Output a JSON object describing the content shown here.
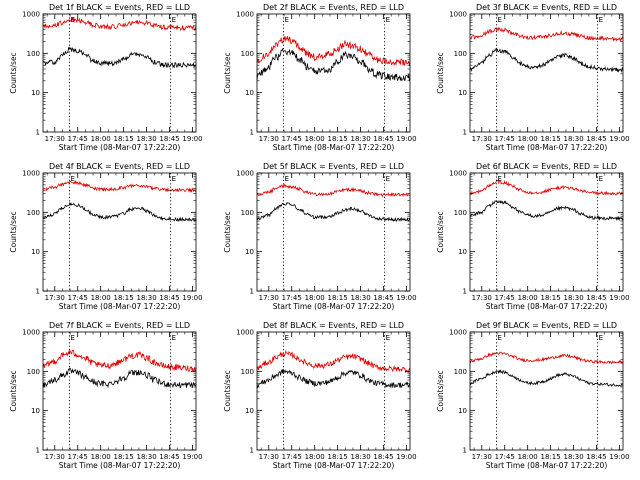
{
  "chart_data": {
    "type": "line",
    "layout": "3x3 grid of panels",
    "colors": {
      "events": "#000000",
      "lld": "#e00000",
      "marker": "#000000",
      "axes": "#000000"
    },
    "common": {
      "ylabel": "Counts/sec",
      "xlabel": "Start Time (08-Mar-07 17:22:20)",
      "yscale": "log",
      "ylim": [
        1,
        1000
      ],
      "yticks": [
        "1",
        "10",
        "100",
        "1000"
      ],
      "xlim_minutes_after_17_00": [
        22.3,
        122.3
      ],
      "xticks": [
        "17:30",
        "17:45",
        "18:00",
        "18:15",
        "18:30",
        "18:45",
        "19:00"
      ],
      "xtick_minutes_after_17_00": [
        30,
        45,
        60,
        75,
        90,
        105,
        120
      ],
      "marker_lines_minutes_after_17_00": [
        39.6,
        105.7
      ],
      "marker_label": "E"
    },
    "panels": [
      {
        "id": "det1f",
        "title": "Det 1f BLACK = Events, RED = LLD",
        "noise": 0.12,
        "series": [
          {
            "key": "events",
            "x": [
              22.3,
              30,
              35,
              40,
              45,
              50,
              55,
              60,
              65,
              70,
              75,
              80,
              85,
              90,
              95,
              100,
              105,
              110,
              115,
              122.3
            ],
            "y": [
              55,
              60,
              90,
              125,
              115,
              90,
              65,
              55,
              55,
              58,
              70,
              90,
              95,
              80,
              60,
              52,
              50,
              50,
              50,
              48
            ]
          },
          {
            "key": "lld",
            "x": [
              22.3,
              30,
              35,
              40,
              45,
              50,
              55,
              60,
              65,
              70,
              75,
              80,
              85,
              90,
              95,
              100,
              105,
              110,
              115,
              122.3
            ],
            "y": [
              490,
              520,
              600,
              710,
              690,
              620,
              530,
              480,
              470,
              480,
              530,
              590,
              620,
              580,
              520,
              470,
              460,
              450,
              450,
              440
            ]
          }
        ]
      },
      {
        "id": "det2f",
        "title": "Det 2f BLACK = Events, RED = LLD",
        "noise": 0.18,
        "series": [
          {
            "key": "events",
            "x": [
              22.3,
              30,
              35,
              40,
              45,
              50,
              55,
              60,
              65,
              70,
              75,
              80,
              85,
              90,
              95,
              100,
              105,
              110,
              115,
              122.3
            ],
            "y": [
              25,
              45,
              80,
              110,
              100,
              70,
              45,
              35,
              35,
              40,
              60,
              90,
              80,
              60,
              40,
              30,
              26,
              25,
              25,
              24
            ]
          },
          {
            "key": "lld",
            "x": [
              22.3,
              30,
              35,
              40,
              45,
              50,
              55,
              60,
              65,
              70,
              75,
              80,
              85,
              90,
              95,
              100,
              105,
              110,
              115,
              122.3
            ],
            "y": [
              60,
              100,
              170,
              230,
              210,
              150,
              100,
              80,
              80,
              95,
              130,
              170,
              160,
              130,
              90,
              70,
              65,
              62,
              60,
              60
            ]
          }
        ]
      },
      {
        "id": "det3f",
        "title": "Det 3f BLACK = Events, RED = LLD",
        "noise": 0.1,
        "series": [
          {
            "key": "events",
            "x": [
              22.3,
              30,
              35,
              40,
              45,
              50,
              55,
              60,
              65,
              70,
              75,
              80,
              85,
              90,
              95,
              100,
              105,
              110,
              115,
              122.3
            ],
            "y": [
              40,
              55,
              90,
              120,
              110,
              80,
              55,
              45,
              45,
              50,
              65,
              85,
              90,
              75,
              55,
              45,
              42,
              40,
              40,
              38
            ]
          },
          {
            "key": "lld",
            "x": [
              22.3,
              30,
              35,
              40,
              45,
              50,
              55,
              60,
              65,
              70,
              75,
              80,
              85,
              90,
              95,
              100,
              105,
              110,
              115,
              122.3
            ],
            "y": [
              250,
              290,
              360,
              410,
              390,
              330,
              270,
              250,
              250,
              260,
              290,
              320,
              330,
              300,
              270,
              250,
              240,
              240,
              235,
              230
            ]
          }
        ]
      },
      {
        "id": "det4f",
        "title": "Det 4f BLACK = Events, RED = LLD",
        "noise": 0.08,
        "series": [
          {
            "key": "events",
            "x": [
              22.3,
              30,
              35,
              40,
              45,
              50,
              55,
              60,
              65,
              70,
              75,
              80,
              85,
              90,
              95,
              100,
              105,
              110,
              115,
              122.3
            ],
            "y": [
              70,
              90,
              130,
              160,
              150,
              120,
              90,
              75,
              75,
              80,
              95,
              120,
              130,
              110,
              85,
              70,
              68,
              66,
              65,
              65
            ]
          },
          {
            "key": "lld",
            "x": [
              22.3,
              30,
              35,
              40,
              45,
              50,
              55,
              60,
              65,
              70,
              75,
              80,
              85,
              90,
              95,
              100,
              105,
              110,
              115,
              122.3
            ],
            "y": [
              380,
              430,
              520,
              580,
              560,
              490,
              420,
              380,
              380,
              390,
              430,
              470,
              480,
              450,
              400,
              380,
              370,
              370,
              370,
              370
            ]
          }
        ]
      },
      {
        "id": "det5f",
        "title": "Det 5f BLACK = Events, RED = LLD",
        "noise": 0.08,
        "series": [
          {
            "key": "events",
            "x": [
              22.3,
              30,
              35,
              40,
              45,
              50,
              55,
              60,
              65,
              70,
              75,
              80,
              85,
              90,
              95,
              100,
              105,
              110,
              115,
              122.3
            ],
            "y": [
              70,
              85,
              130,
              165,
              155,
              120,
              90,
              75,
              75,
              80,
              95,
              115,
              125,
              110,
              85,
              70,
              68,
              66,
              65,
              65
            ]
          },
          {
            "key": "lld",
            "x": [
              22.3,
              30,
              35,
              40,
              45,
              50,
              55,
              60,
              65,
              70,
              75,
              80,
              85,
              90,
              95,
              100,
              105,
              110,
              115,
              122.3
            ],
            "y": [
              280,
              320,
              410,
              470,
              450,
              390,
              320,
              290,
              290,
              300,
              340,
              370,
              380,
              350,
              310,
              290,
              280,
              280,
              280,
              280
            ]
          }
        ]
      },
      {
        "id": "det6f",
        "title": "Det 6f BLACK = Events, RED = LLD",
        "noise": 0.08,
        "series": [
          {
            "key": "events",
            "x": [
              22.3,
              30,
              35,
              40,
              45,
              50,
              55,
              60,
              65,
              70,
              75,
              80,
              85,
              90,
              95,
              100,
              105,
              110,
              115,
              122.3
            ],
            "y": [
              80,
              100,
              150,
              190,
              175,
              140,
              100,
              85,
              80,
              85,
              100,
              125,
              130,
              115,
              90,
              75,
              72,
              70,
              70,
              70
            ]
          },
          {
            "key": "lld",
            "x": [
              22.3,
              30,
              35,
              40,
              45,
              50,
              55,
              60,
              65,
              70,
              75,
              80,
              85,
              90,
              95,
              100,
              105,
              110,
              115,
              122.3
            ],
            "y": [
              300,
              350,
              480,
              600,
              560,
              460,
              370,
              320,
              320,
              330,
              380,
              420,
              430,
              400,
              350,
              320,
              310,
              305,
              300,
              300
            ]
          }
        ]
      },
      {
        "id": "det7f",
        "title": "Det 7f BLACK = Events, RED = LLD",
        "noise": 0.16,
        "series": [
          {
            "key": "events",
            "x": [
              22.3,
              30,
              35,
              40,
              45,
              50,
              55,
              60,
              65,
              70,
              75,
              80,
              85,
              90,
              95,
              100,
              105,
              110,
              115,
              122.3
            ],
            "y": [
              45,
              60,
              80,
              100,
              90,
              70,
              55,
              48,
              48,
              55,
              70,
              90,
              95,
              80,
              60,
              50,
              47,
              45,
              45,
              45
            ]
          },
          {
            "key": "lld",
            "x": [
              22.3,
              30,
              35,
              40,
              45,
              50,
              55,
              60,
              65,
              70,
              75,
              80,
              85,
              90,
              95,
              100,
              105,
              110,
              115,
              122.3
            ],
            "y": [
              130,
              180,
              250,
              300,
              270,
              210,
              160,
              140,
              140,
              160,
              200,
              250,
              260,
              220,
              170,
              140,
              130,
              125,
              120,
              115
            ]
          }
        ]
      },
      {
        "id": "det8f",
        "title": "Det 8f BLACK = Events, RED = LLD",
        "noise": 0.14,
        "series": [
          {
            "key": "events",
            "x": [
              22.3,
              30,
              35,
              40,
              45,
              50,
              55,
              60,
              65,
              70,
              75,
              80,
              85,
              90,
              95,
              100,
              105,
              110,
              115,
              122.3
            ],
            "y": [
              45,
              60,
              80,
              100,
              90,
              70,
              55,
              50,
              50,
              55,
              70,
              90,
              95,
              80,
              60,
              50,
              47,
              45,
              45,
              45
            ]
          },
          {
            "key": "lld",
            "x": [
              22.3,
              30,
              35,
              40,
              45,
              50,
              55,
              60,
              65,
              70,
              75,
              80,
              85,
              90,
              95,
              100,
              105,
              110,
              115,
              122.3
            ],
            "y": [
              120,
              170,
              230,
              280,
              260,
              200,
              160,
              140,
              140,
              150,
              190,
              230,
              240,
              210,
              160,
              130,
              120,
              115,
              115,
              110
            ]
          }
        ]
      },
      {
        "id": "det9f",
        "title": "Det 9f BLACK = Events, RED = LLD",
        "noise": 0.07,
        "series": [
          {
            "key": "events",
            "x": [
              22.3,
              30,
              35,
              40,
              45,
              50,
              55,
              60,
              65,
              70,
              75,
              80,
              85,
              90,
              95,
              100,
              105,
              110,
              115,
              122.3
            ],
            "y": [
              50,
              65,
              85,
              100,
              95,
              75,
              60,
              50,
              50,
              55,
              65,
              80,
              85,
              75,
              60,
              50,
              48,
              47,
              45,
              45
            ]
          },
          {
            "key": "lld",
            "x": [
              22.3,
              30,
              35,
              40,
              45,
              50,
              55,
              60,
              65,
              70,
              75,
              80,
              85,
              90,
              95,
              100,
              105,
              110,
              115,
              122.3
            ],
            "y": [
              180,
              210,
              260,
              290,
              280,
              240,
              200,
              190,
              190,
              200,
              220,
              240,
              250,
              230,
              200,
              180,
              175,
              170,
              170,
              170
            ]
          }
        ]
      }
    ]
  }
}
